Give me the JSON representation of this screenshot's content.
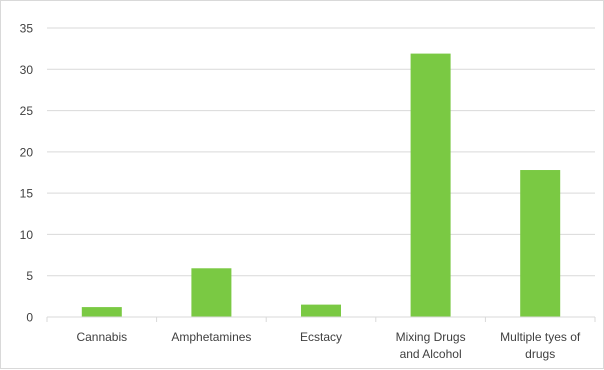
{
  "chart_data": {
    "type": "bar",
    "categories": [
      [
        "Cannabis"
      ],
      [
        "Amphetamines"
      ],
      [
        "Ecstacy"
      ],
      [
        "Mixing Drugs",
        "and Alcohol"
      ],
      [
        "Multiple tyes of",
        "drugs"
      ]
    ],
    "values": [
      1.2,
      5.9,
      1.5,
      31.9,
      17.8
    ],
    "y_ticks": [
      "0",
      "5",
      "10",
      "15",
      "20",
      "25",
      "30",
      "35"
    ],
    "ylim": [
      0,
      35
    ],
    "grid": true,
    "legend": "none",
    "bar_color": "#7ac943",
    "gridline_color": "#d9d9d9",
    "text_color": "#404040"
  }
}
